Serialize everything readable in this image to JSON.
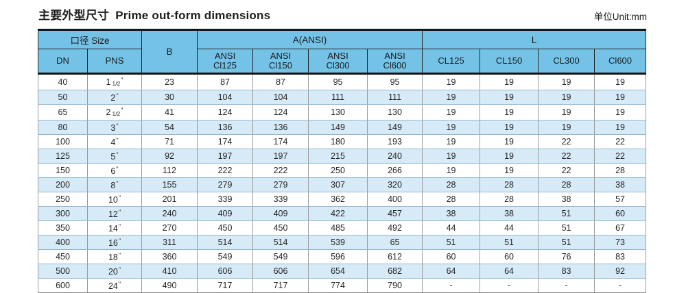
{
  "title": {
    "zh": "主要外型尺寸",
    "en": "Prime out-form dimensions"
  },
  "unit_note": "单位Unit:mm",
  "colors": {
    "header_bg": "#74C3E7",
    "stripe_bg": "#D7EAF8",
    "border_dark": "#121212",
    "row_line": "#93B7CE"
  },
  "table": {
    "inch_mark": "\"",
    "header": {
      "size_group": "口径 Size",
      "dn": "DN",
      "pns": "PNS",
      "b": "B",
      "a_group": "A(ANSI)",
      "a_cols": [
        {
          "line1": "ANSI",
          "line2": "Cl125"
        },
        {
          "line1": "ANSI",
          "line2": "Cl150"
        },
        {
          "line1": "ANSI",
          "line2": "Cl300"
        },
        {
          "line1": "ANSI",
          "line2": "Cl600"
        }
      ],
      "l_group": "L",
      "l_cols": [
        "CL125",
        "CL150",
        "CL300",
        "Cl600"
      ]
    },
    "rows": [
      {
        "dn": "40",
        "pns_main": "1",
        "pns_frac": "1/2",
        "b": "23",
        "a": [
          "87",
          "87",
          "95",
          "95"
        ],
        "l": [
          "19",
          "19",
          "19",
          "19"
        ]
      },
      {
        "dn": "50",
        "pns_main": "2",
        "pns_frac": "",
        "b": "30",
        "a": [
          "104",
          "104",
          "111",
          "111"
        ],
        "l": [
          "19",
          "19",
          "19",
          "19"
        ]
      },
      {
        "dn": "65",
        "pns_main": "2",
        "pns_frac": "1/2",
        "b": "41",
        "a": [
          "124",
          "124",
          "130",
          "130"
        ],
        "l": [
          "19",
          "19",
          "19",
          "19"
        ]
      },
      {
        "dn": "80",
        "pns_main": "3",
        "pns_frac": "",
        "b": "54",
        "a": [
          "136",
          "136",
          "149",
          "149"
        ],
        "l": [
          "19",
          "19",
          "19",
          "19"
        ]
      },
      {
        "dn": "100",
        "pns_main": "4",
        "pns_frac": "",
        "b": "71",
        "a": [
          "174",
          "174",
          "180",
          "193"
        ],
        "l": [
          "19",
          "19",
          "22",
          "22"
        ]
      },
      {
        "dn": "125",
        "pns_main": "5",
        "pns_frac": "",
        "b": "92",
        "a": [
          "197",
          "197",
          "215",
          "240"
        ],
        "l": [
          "19",
          "19",
          "22",
          "22"
        ]
      },
      {
        "dn": "150",
        "pns_main": "6",
        "pns_frac": "",
        "b": "112",
        "a": [
          "222",
          "222",
          "250",
          "266"
        ],
        "l": [
          "19",
          "19",
          "22",
          "28"
        ]
      },
      {
        "dn": "200",
        "pns_main": "8",
        "pns_frac": "",
        "b": "155",
        "a": [
          "279",
          "279",
          "307",
          "320"
        ],
        "l": [
          "28",
          "28",
          "28",
          "38"
        ]
      },
      {
        "dn": "250",
        "pns_main": "10",
        "pns_frac": "",
        "b": "201",
        "a": [
          "339",
          "339",
          "362",
          "400"
        ],
        "l": [
          "28",
          "28",
          "38",
          "57"
        ]
      },
      {
        "dn": "300",
        "pns_main": "12",
        "pns_frac": "",
        "b": "240",
        "a": [
          "409",
          "409",
          "422",
          "457"
        ],
        "l": [
          "38",
          "38",
          "51",
          "60"
        ]
      },
      {
        "dn": "350",
        "pns_main": "14",
        "pns_frac": "",
        "b": "270",
        "a": [
          "450",
          "450",
          "485",
          "492"
        ],
        "l": [
          "44",
          "44",
          "51",
          "67"
        ]
      },
      {
        "dn": "400",
        "pns_main": "16",
        "pns_frac": "",
        "b": "311",
        "a": [
          "514",
          "514",
          "539",
          "65"
        ],
        "l": [
          "51",
          "51",
          "51",
          "73"
        ]
      },
      {
        "dn": "450",
        "pns_main": "18",
        "pns_frac": "",
        "b": "360",
        "a": [
          "549",
          "549",
          "596",
          "612"
        ],
        "l": [
          "60",
          "60",
          "76",
          "83"
        ]
      },
      {
        "dn": "500",
        "pns_main": "20",
        "pns_frac": "",
        "b": "410",
        "a": [
          "606",
          "606",
          "654",
          "682"
        ],
        "l": [
          "64",
          "64",
          "83",
          "92"
        ]
      },
      {
        "dn": "600",
        "pns_main": "24",
        "pns_frac": "",
        "b": "490",
        "a": [
          "717",
          "717",
          "774",
          "790"
        ],
        "l": [
          "-",
          "-",
          "-",
          "-"
        ]
      }
    ]
  }
}
